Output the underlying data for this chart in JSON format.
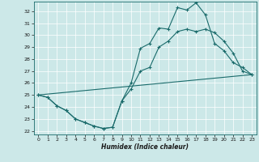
{
  "xlabel": "Humidex (Indice chaleur)",
  "xlim": [
    -0.5,
    23.5
  ],
  "ylim": [
    21.7,
    32.8
  ],
  "yticks": [
    22,
    23,
    24,
    25,
    26,
    27,
    28,
    29,
    30,
    31,
    32
  ],
  "xticks": [
    0,
    1,
    2,
    3,
    4,
    5,
    6,
    7,
    8,
    9,
    10,
    11,
    12,
    13,
    14,
    15,
    16,
    17,
    18,
    19,
    20,
    21,
    22,
    23
  ],
  "bg_color": "#cce8e8",
  "line_color": "#1a6b6b",
  "line1_x": [
    0,
    1,
    2,
    3,
    4,
    5,
    6,
    7,
    8,
    9,
    10,
    11,
    12,
    13,
    14,
    15,
    16,
    17,
    18,
    19,
    20,
    21,
    22,
    23
  ],
  "line1_y": [
    25.0,
    24.8,
    24.1,
    23.7,
    23.0,
    22.7,
    22.4,
    22.2,
    22.3,
    24.5,
    25.5,
    27.0,
    27.3,
    29.0,
    29.5,
    30.3,
    30.5,
    30.3,
    30.5,
    30.2,
    29.5,
    28.5,
    27.0,
    26.7
  ],
  "line2_x": [
    0,
    1,
    2,
    3,
    4,
    5,
    6,
    7,
    8,
    9,
    10,
    11,
    12,
    13,
    14,
    15,
    16,
    17,
    18,
    19,
    20,
    21,
    22,
    23
  ],
  "line2_y": [
    25.0,
    24.8,
    24.1,
    23.7,
    23.0,
    22.7,
    22.4,
    22.2,
    22.3,
    24.5,
    26.0,
    28.9,
    29.3,
    30.6,
    30.5,
    32.3,
    32.1,
    32.7,
    31.7,
    29.3,
    28.7,
    27.7,
    27.3,
    26.7
  ],
  "line3_x": [
    0,
    23
  ],
  "line3_y": [
    25.0,
    26.7
  ],
  "marker": "+",
  "markersize": 3.5
}
